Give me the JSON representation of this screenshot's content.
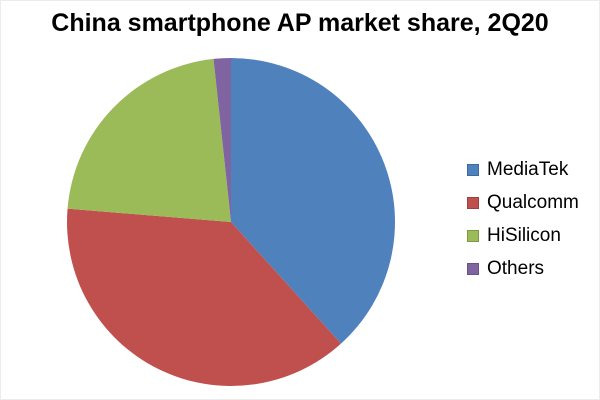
{
  "page": {
    "background": "#ffffff",
    "border_color": "#ececec"
  },
  "chart_data": {
    "type": "pie",
    "title": "China smartphone AP market share, 2Q20",
    "series": [
      {
        "name": "MediaTek",
        "value": 38.3,
        "color": "#4F81BD"
      },
      {
        "name": "Qualcomm",
        "value": 38.0,
        "color": "#C0504D"
      },
      {
        "name": "HiSilicon",
        "value": 22.0,
        "color": "#9BBB59"
      },
      {
        "name": "Others",
        "value": 1.7,
        "color": "#8064A2"
      }
    ],
    "unit": "% share (estimated from slice angles, no data labels shown)",
    "start_angle_deg": 0,
    "direction": "clockwise",
    "legend_position": "right",
    "data_labels_shown": false,
    "title_color": "#000000",
    "legend_text_color": "#000000"
  }
}
